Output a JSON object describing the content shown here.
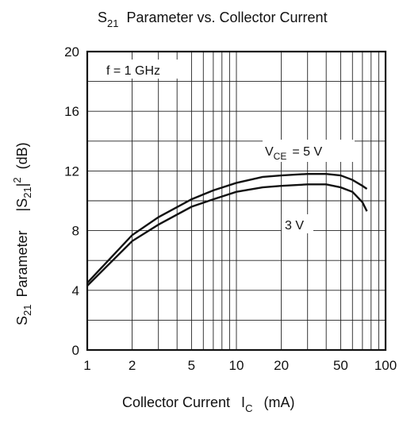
{
  "chart_data": {
    "type": "line",
    "title": "S21 Parameter vs. Collector Current",
    "xlabel": "Collector Current IC (mA)",
    "ylabel": "S21 Parameter |S21|2 (dB)",
    "x_scale": "log",
    "xlim": [
      1,
      100
    ],
    "ylim": [
      0,
      20
    ],
    "x_ticks": [
      1,
      2,
      5,
      10,
      20,
      50,
      100
    ],
    "y_ticks": [
      0,
      4,
      8,
      12,
      16,
      20
    ],
    "grid": true,
    "condition_label": "f = 1 GHz",
    "series": [
      {
        "name": "VCE = 5 V",
        "x": [
          1,
          2,
          3,
          5,
          7,
          10,
          15,
          20,
          30,
          40,
          50,
          60,
          70,
          75
        ],
        "y": [
          4.5,
          7.7,
          8.9,
          10.1,
          10.7,
          11.2,
          11.6,
          11.7,
          11.8,
          11.8,
          11.7,
          11.4,
          11.0,
          10.8
        ]
      },
      {
        "name": "3 V",
        "x": [
          1,
          2,
          3,
          5,
          7,
          10,
          15,
          20,
          30,
          40,
          50,
          60,
          70,
          75
        ],
        "y": [
          4.3,
          7.3,
          8.4,
          9.6,
          10.1,
          10.6,
          10.9,
          11.0,
          11.1,
          11.1,
          10.9,
          10.6,
          9.9,
          9.3
        ]
      }
    ]
  },
  "labels": {
    "title_s": "S",
    "title_sub": "21",
    "title_rest": "Parameter vs. Collector Current",
    "x_main": "Collector Current",
    "x_symbol": "I",
    "x_sub": "C",
    "x_unit": "(mA)",
    "y_s": "S",
    "y_s_sub": "21",
    "y_param": "Parameter",
    "y_abs_open": "|S",
    "y_abs_sub": "21",
    "y_abs_close": "|",
    "y_sup": "2",
    "y_unit": "(dB)",
    "freq": "f = 1 GHz",
    "vce_v": "V",
    "vce_sub": "CE",
    "vce_rest": "= 5 V",
    "three_v": "3 V"
  }
}
